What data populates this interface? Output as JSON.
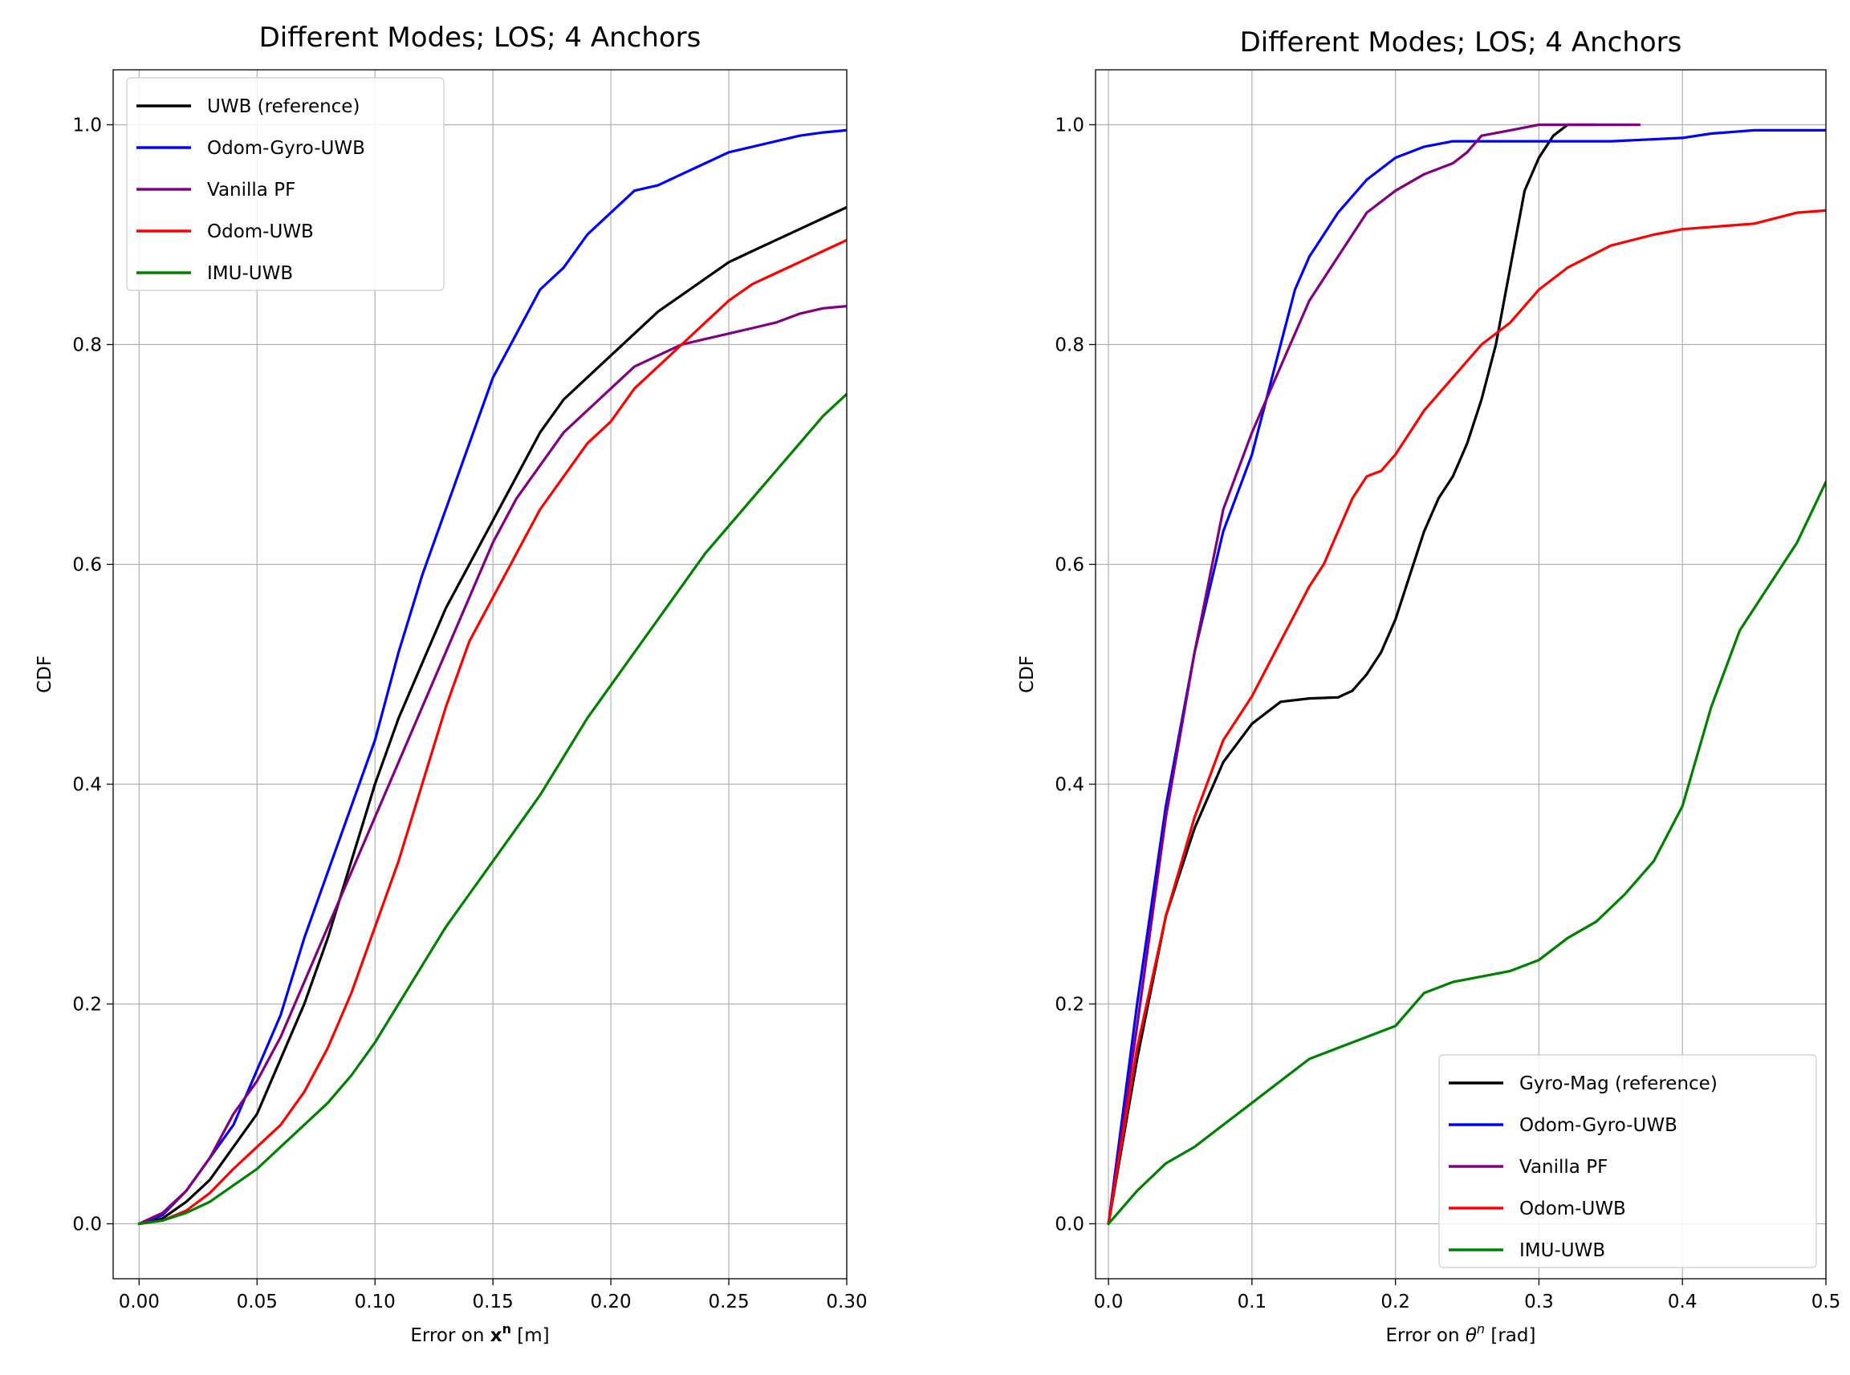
{
  "chart_data": [
    {
      "type": "line",
      "title": "Different Modes; LOS; 4 Anchors",
      "xlabel_prefix": "Error on ",
      "xlabel_symbol": "x",
      "xlabel_superscript": "n",
      "xlabel_suffix": " [m]",
      "ylabel": "CDF",
      "xlim": [
        -0.011,
        0.3
      ],
      "ylim": [
        -0.05,
        1.05
      ],
      "xticks": [
        0.0,
        0.05,
        0.1,
        0.15,
        0.2,
        0.25,
        0.3
      ],
      "xtick_labels": [
        "0.00",
        "0.05",
        "0.10",
        "0.15",
        "0.20",
        "0.25",
        "0.30"
      ],
      "yticks": [
        0.0,
        0.2,
        0.4,
        0.6,
        0.8,
        1.0
      ],
      "ytick_labels": [
        "0.0",
        "0.2",
        "0.4",
        "0.6",
        "0.8",
        "1.0"
      ],
      "grid": true,
      "legend_position": "upper-left",
      "series": [
        {
          "name": "UWB (reference)",
          "color": "#000000",
          "x": [
            0,
            0.01,
            0.02,
            0.03,
            0.04,
            0.05,
            0.06,
            0.07,
            0.08,
            0.09,
            0.1,
            0.11,
            0.12,
            0.13,
            0.14,
            0.15,
            0.16,
            0.17,
            0.18,
            0.19,
            0.2,
            0.21,
            0.22,
            0.23,
            0.24,
            0.25,
            0.26,
            0.27,
            0.28,
            0.29,
            0.3
          ],
          "y": [
            0,
            0.005,
            0.02,
            0.04,
            0.07,
            0.1,
            0.15,
            0.2,
            0.26,
            0.33,
            0.4,
            0.46,
            0.51,
            0.56,
            0.6,
            0.64,
            0.68,
            0.72,
            0.75,
            0.77,
            0.79,
            0.81,
            0.83,
            0.845,
            0.86,
            0.875,
            0.885,
            0.895,
            0.905,
            0.915,
            0.925
          ]
        },
        {
          "name": "Odom-Gyro-UWB",
          "color": "#0000ff",
          "x": [
            0,
            0.01,
            0.02,
            0.03,
            0.04,
            0.05,
            0.06,
            0.07,
            0.08,
            0.09,
            0.1,
            0.11,
            0.12,
            0.13,
            0.14,
            0.15,
            0.16,
            0.17,
            0.18,
            0.19,
            0.2,
            0.21,
            0.22,
            0.23,
            0.24,
            0.25,
            0.26,
            0.27,
            0.28,
            0.29,
            0.3
          ],
          "y": [
            0,
            0.008,
            0.03,
            0.06,
            0.09,
            0.14,
            0.19,
            0.26,
            0.32,
            0.38,
            0.44,
            0.52,
            0.59,
            0.65,
            0.71,
            0.77,
            0.81,
            0.85,
            0.87,
            0.9,
            0.92,
            0.94,
            0.945,
            0.955,
            0.965,
            0.975,
            0.98,
            0.985,
            0.99,
            0.993,
            0.995
          ]
        },
        {
          "name": "Vanilla PF",
          "color": "#800080",
          "x": [
            0,
            0.01,
            0.02,
            0.03,
            0.04,
            0.05,
            0.06,
            0.07,
            0.08,
            0.09,
            0.1,
            0.11,
            0.12,
            0.13,
            0.14,
            0.15,
            0.16,
            0.17,
            0.18,
            0.19,
            0.2,
            0.21,
            0.22,
            0.23,
            0.24,
            0.25,
            0.26,
            0.27,
            0.28,
            0.29,
            0.3
          ],
          "y": [
            0,
            0.01,
            0.03,
            0.06,
            0.1,
            0.13,
            0.17,
            0.22,
            0.27,
            0.32,
            0.37,
            0.42,
            0.47,
            0.52,
            0.57,
            0.62,
            0.66,
            0.69,
            0.72,
            0.74,
            0.76,
            0.78,
            0.79,
            0.8,
            0.805,
            0.81,
            0.815,
            0.82,
            0.828,
            0.833,
            0.835
          ]
        },
        {
          "name": "Odom-UWB",
          "color": "#ff0000",
          "x": [
            0,
            0.01,
            0.02,
            0.03,
            0.04,
            0.05,
            0.06,
            0.07,
            0.08,
            0.09,
            0.1,
            0.11,
            0.12,
            0.13,
            0.14,
            0.15,
            0.16,
            0.17,
            0.18,
            0.19,
            0.2,
            0.21,
            0.22,
            0.23,
            0.24,
            0.25,
            0.26,
            0.27,
            0.28,
            0.29,
            0.3
          ],
          "y": [
            0,
            0.003,
            0.012,
            0.028,
            0.05,
            0.07,
            0.09,
            0.12,
            0.16,
            0.21,
            0.27,
            0.33,
            0.4,
            0.47,
            0.53,
            0.57,
            0.61,
            0.65,
            0.68,
            0.71,
            0.73,
            0.76,
            0.78,
            0.8,
            0.82,
            0.84,
            0.855,
            0.865,
            0.875,
            0.885,
            0.895
          ]
        },
        {
          "name": "IMU-UWB",
          "color": "#008000",
          "x": [
            0,
            0.01,
            0.02,
            0.03,
            0.04,
            0.05,
            0.06,
            0.07,
            0.08,
            0.09,
            0.1,
            0.11,
            0.12,
            0.13,
            0.14,
            0.15,
            0.16,
            0.17,
            0.18,
            0.19,
            0.2,
            0.21,
            0.22,
            0.23,
            0.24,
            0.25,
            0.26,
            0.27,
            0.28,
            0.29,
            0.3
          ],
          "y": [
            0,
            0.003,
            0.01,
            0.02,
            0.035,
            0.05,
            0.07,
            0.09,
            0.11,
            0.135,
            0.165,
            0.2,
            0.235,
            0.27,
            0.3,
            0.33,
            0.36,
            0.39,
            0.425,
            0.46,
            0.49,
            0.52,
            0.55,
            0.58,
            0.61,
            0.635,
            0.66,
            0.685,
            0.71,
            0.735,
            0.755
          ]
        }
      ]
    },
    {
      "type": "line",
      "title": "Different Modes; LOS; 4 Anchors",
      "xlabel_prefix": "Error on ",
      "xlabel_symbol": "θ",
      "xlabel_superscript": "n",
      "xlabel_suffix": " [rad]",
      "ylabel": "CDF",
      "xlim": [
        -0.009,
        0.5
      ],
      "ylim": [
        -0.05,
        1.05
      ],
      "xticks": [
        0.0,
        0.1,
        0.2,
        0.3,
        0.4,
        0.5
      ],
      "xtick_labels": [
        "0.0",
        "0.1",
        "0.2",
        "0.3",
        "0.4",
        "0.5"
      ],
      "yticks": [
        0.0,
        0.2,
        0.4,
        0.6,
        0.8,
        1.0
      ],
      "ytick_labels": [
        "0.0",
        "0.2",
        "0.4",
        "0.6",
        "0.8",
        "1.0"
      ],
      "grid": true,
      "legend_position": "lower-right",
      "series": [
        {
          "name": "Gyro-Mag (reference)",
          "color": "#000000",
          "x": [
            0,
            0.02,
            0.04,
            0.06,
            0.08,
            0.1,
            0.12,
            0.14,
            0.16,
            0.17,
            0.18,
            0.19,
            0.2,
            0.21,
            0.22,
            0.23,
            0.24,
            0.25,
            0.26,
            0.27,
            0.28,
            0.29,
            0.3,
            0.31,
            0.32,
            0.33,
            0.34
          ],
          "y": [
            0,
            0.15,
            0.28,
            0.36,
            0.42,
            0.455,
            0.475,
            0.478,
            0.479,
            0.485,
            0.5,
            0.52,
            0.55,
            0.59,
            0.63,
            0.66,
            0.68,
            0.71,
            0.75,
            0.8,
            0.87,
            0.94,
            0.97,
            0.99,
            1.0,
            1.0,
            1.0
          ]
        },
        {
          "name": "Odom-Gyro-UWB",
          "color": "#0000ff",
          "x": [
            0,
            0.02,
            0.04,
            0.06,
            0.08,
            0.1,
            0.12,
            0.13,
            0.14,
            0.16,
            0.18,
            0.2,
            0.22,
            0.24,
            0.26,
            0.3,
            0.35,
            0.4,
            0.42,
            0.45,
            0.5
          ],
          "y": [
            0,
            0.2,
            0.38,
            0.52,
            0.63,
            0.7,
            0.8,
            0.85,
            0.88,
            0.92,
            0.95,
            0.97,
            0.98,
            0.985,
            0.985,
            0.985,
            0.985,
            0.988,
            0.992,
            0.995,
            0.995
          ]
        },
        {
          "name": "Vanilla PF",
          "color": "#800080",
          "x": [
            0,
            0.02,
            0.04,
            0.06,
            0.08,
            0.1,
            0.12,
            0.14,
            0.16,
            0.18,
            0.2,
            0.22,
            0.24,
            0.25,
            0.26,
            0.28,
            0.3,
            0.34,
            0.37
          ],
          "y": [
            0,
            0.18,
            0.37,
            0.52,
            0.65,
            0.72,
            0.78,
            0.84,
            0.88,
            0.92,
            0.94,
            0.955,
            0.965,
            0.975,
            0.99,
            0.995,
            1.0,
            1.0,
            1.0
          ]
        },
        {
          "name": "Odom-UWB",
          "color": "#ff0000",
          "x": [
            0,
            0.02,
            0.04,
            0.06,
            0.08,
            0.1,
            0.12,
            0.14,
            0.15,
            0.16,
            0.17,
            0.18,
            0.19,
            0.2,
            0.22,
            0.24,
            0.26,
            0.28,
            0.3,
            0.32,
            0.35,
            0.38,
            0.4,
            0.45,
            0.48,
            0.5
          ],
          "y": [
            0,
            0.16,
            0.28,
            0.37,
            0.44,
            0.48,
            0.53,
            0.58,
            0.6,
            0.63,
            0.66,
            0.68,
            0.685,
            0.7,
            0.74,
            0.77,
            0.8,
            0.82,
            0.85,
            0.87,
            0.89,
            0.9,
            0.905,
            0.91,
            0.92,
            0.922
          ]
        },
        {
          "name": "IMU-UWB",
          "color": "#008000",
          "x": [
            0,
            0.02,
            0.04,
            0.06,
            0.08,
            0.1,
            0.12,
            0.14,
            0.16,
            0.18,
            0.2,
            0.22,
            0.24,
            0.26,
            0.28,
            0.3,
            0.32,
            0.34,
            0.36,
            0.38,
            0.4,
            0.42,
            0.44,
            0.46,
            0.48,
            0.5
          ],
          "y": [
            0,
            0.03,
            0.055,
            0.07,
            0.09,
            0.11,
            0.13,
            0.15,
            0.16,
            0.17,
            0.18,
            0.21,
            0.22,
            0.225,
            0.23,
            0.24,
            0.26,
            0.275,
            0.3,
            0.33,
            0.38,
            0.47,
            0.54,
            0.58,
            0.62,
            0.675
          ]
        }
      ]
    }
  ]
}
